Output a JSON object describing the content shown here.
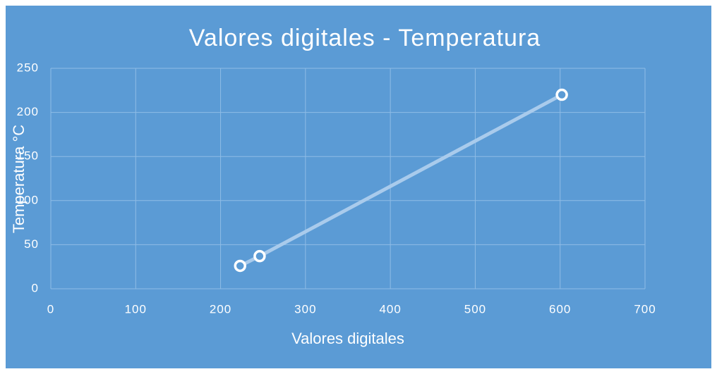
{
  "chart_data": {
    "type": "scatter",
    "title": "Valores digitales - Temperatura",
    "x_label": "Valores digitales",
    "y_label": "Temperatura °C",
    "x": [
      223,
      246,
      602
    ],
    "values": [
      26,
      37,
      220
    ],
    "color": "#a9cbec",
    "marker_color": "#ffffff",
    "background": "#5b9bd5",
    "connect": true,
    "xlim": [
      0,
      700
    ],
    "xticks": [
      0,
      100,
      200,
      300,
      400,
      500,
      600,
      700
    ],
    "ylim": [
      0,
      250
    ],
    "yticks": [
      0,
      50,
      100,
      150,
      200,
      250
    ],
    "grid": true
  }
}
